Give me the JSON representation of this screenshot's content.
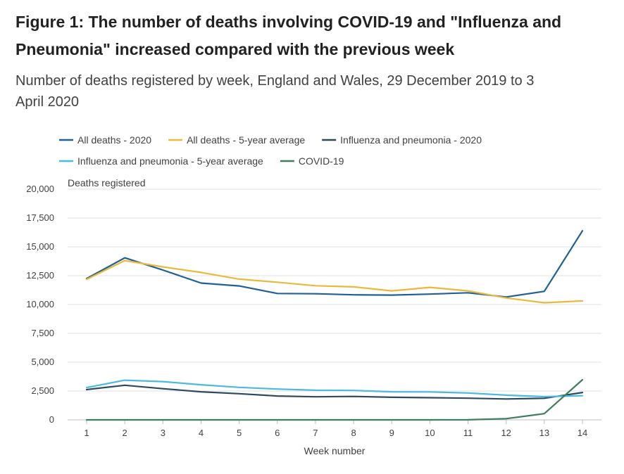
{
  "header": {
    "title": "Figure 1: The number of deaths involving COVID-19 and \"Influenza and Pneumonia\" increased compared with the previous week",
    "subtitle": "Number of deaths registered by week, England and Wales, 29 December 2019 to 3 April 2020"
  },
  "chart_data": {
    "type": "line",
    "title": "Figure 1: The number of deaths involving COVID-19 and \"Influenza and Pneumonia\" increased compared with the previous week",
    "subtitle": "Number of deaths registered by week, England and Wales, 29 December 2019 to 3 April 2020",
    "xlabel": "Week number",
    "ylabel": "Deaths registered",
    "x": [
      1,
      2,
      3,
      4,
      5,
      6,
      7,
      8,
      9,
      10,
      11,
      12,
      13,
      14
    ],
    "ylim": [
      0,
      20000
    ],
    "yticks": [
      0,
      2500,
      5000,
      7500,
      10000,
      12500,
      15000,
      17500,
      20000
    ],
    "ytick_labels": [
      "0",
      "2,500",
      "5,000",
      "7,500",
      "10,000",
      "12,500",
      "15,000",
      "17,500",
      "20,000"
    ],
    "grid": "horizontal",
    "legend_position": "top",
    "series": [
      {
        "name": "All deaths - 2020",
        "color": "#206095",
        "values": [
          12250,
          14050,
          12990,
          11860,
          11610,
          10960,
          10930,
          10840,
          10820,
          10900,
          11020,
          10650,
          11140,
          16390
        ]
      },
      {
        "name": "All deaths - 5-year average",
        "color": "#E8B93C",
        "values": [
          12180,
          13810,
          13260,
          12780,
          12200,
          11930,
          11630,
          11530,
          11180,
          11490,
          11180,
          10570,
          10150,
          10310
        ]
      },
      {
        "name": "Influenza and pneumonia - 2020",
        "color": "#2C4A5E",
        "values": [
          2620,
          3000,
          2700,
          2430,
          2270,
          2070,
          2000,
          2030,
          1960,
          1920,
          1880,
          1810,
          1870,
          2370
        ]
      },
      {
        "name": "Influenza and pneumonia - 5-year average",
        "color": "#4CB9E0",
        "values": [
          2800,
          3440,
          3320,
          3040,
          2820,
          2670,
          2570,
          2550,
          2430,
          2420,
          2330,
          2140,
          2010,
          2090
        ]
      },
      {
        "name": "COVID-19",
        "color": "#3F7D5B",
        "values": [
          0,
          0,
          0,
          0,
          0,
          0,
          0,
          0,
          0,
          0,
          5,
          103,
          539,
          3475
        ]
      }
    ]
  }
}
